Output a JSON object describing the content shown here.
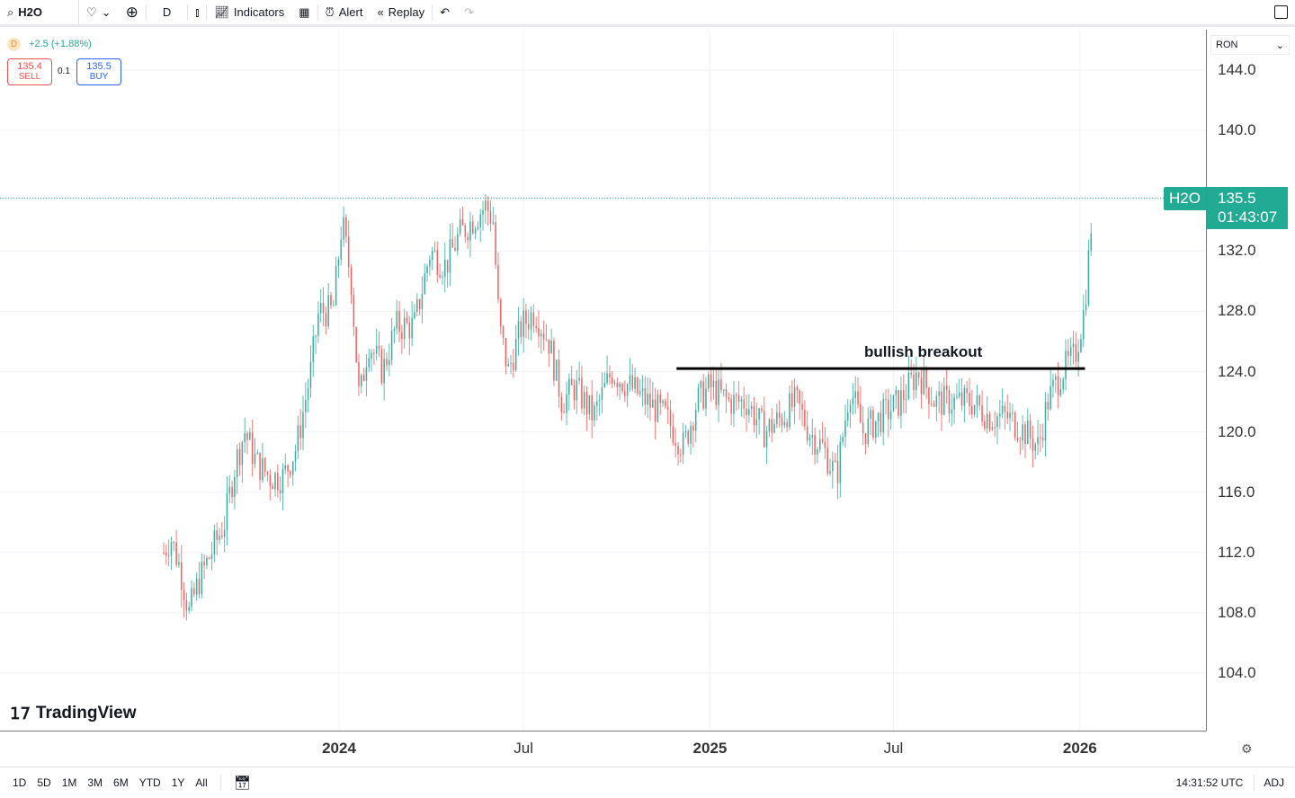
{
  "toolbar": {
    "symbol": "H2O",
    "interval": "D",
    "indicators": "Indicators",
    "alert": "Alert",
    "replay": "Replay"
  },
  "legend": {
    "interval_badge": "D",
    "change": "+2.5 (+1.88%)",
    "sell_price": "135.4",
    "sell_label": "SELL",
    "spread": "0.1",
    "buy_price": "135.5",
    "buy_label": "BUY"
  },
  "currency": "RON",
  "last_price": {
    "symbol": "H2O",
    "price": "135.5",
    "countdown": "01:43:07"
  },
  "annotation": "bullish breakout",
  "watermark": "TradingView",
  "bottom": {
    "ranges": [
      "1D",
      "5D",
      "1M",
      "3M",
      "6M",
      "YTD",
      "1Y",
      "All"
    ],
    "time": "14:31:52 UTC",
    "adj": "ADJ"
  },
  "colors": {
    "up": "#26a69a",
    "down": "#ef5350",
    "accent": "#22ab94"
  },
  "chart_data": {
    "type": "candlestick",
    "title": "H2O, D",
    "x_unit": "days since 2024-01-01",
    "ylim": [
      101,
      146
    ],
    "yticks": [
      "144.0",
      "140.0",
      "132.0",
      "128.0",
      "124.0",
      "120.0",
      "116.0",
      "112.0",
      "108.0",
      "104.0"
    ],
    "xticks": [
      {
        "label": "2024",
        "day": 0
      },
      {
        "label": "Jul",
        "day": 182
      },
      {
        "label": "2025",
        "day": 366
      },
      {
        "label": "Jul",
        "day": 547
      },
      {
        "label": "2026",
        "day": 731
      }
    ],
    "breakout_level": 124.2,
    "breakout_range_days": [
      333,
      736
    ],
    "close_path": [
      [
        -173,
        112
      ],
      [
        -166,
        113
      ],
      [
        -157,
        111
      ],
      [
        -148,
        108
      ],
      [
        -139,
        110
      ],
      [
        -126,
        112
      ],
      [
        -113,
        114
      ],
      [
        -102,
        118
      ],
      [
        -93,
        120
      ],
      [
        -82,
        118
      ],
      [
        -68,
        117
      ],
      [
        -55,
        117
      ],
      [
        -42,
        119
      ],
      [
        -28,
        124
      ],
      [
        -20,
        128
      ],
      [
        -6,
        128
      ],
      [
        3,
        134
      ],
      [
        12,
        130
      ],
      [
        20,
        122
      ],
      [
        29,
        126
      ],
      [
        43,
        124
      ],
      [
        56,
        127
      ],
      [
        74,
        127
      ],
      [
        90,
        132
      ],
      [
        105,
        131
      ],
      [
        118,
        133
      ],
      [
        131,
        134
      ],
      [
        145,
        135
      ],
      [
        152,
        134
      ],
      [
        158,
        127
      ],
      [
        167,
        124
      ],
      [
        180,
        127
      ],
      [
        193,
        128
      ],
      [
        207,
        126
      ],
      [
        220,
        122
      ],
      [
        233,
        123
      ],
      [
        251,
        121
      ],
      [
        269,
        124
      ],
      [
        287,
        123
      ],
      [
        304,
        122
      ],
      [
        322,
        121
      ],
      [
        340,
        119
      ],
      [
        353,
        122
      ],
      [
        366,
        123
      ],
      [
        384,
        122
      ],
      [
        402,
        122
      ],
      [
        420,
        120
      ],
      [
        437,
        121
      ],
      [
        451,
        122
      ],
      [
        464,
        120
      ],
      [
        477,
        119
      ],
      [
        491,
        117
      ],
      [
        504,
        123
      ],
      [
        517,
        120
      ],
      [
        535,
        121
      ],
      [
        553,
        122
      ],
      [
        571,
        124
      ],
      [
        588,
        122
      ],
      [
        606,
        122
      ],
      [
        624,
        122
      ],
      [
        642,
        121
      ],
      [
        659,
        121
      ],
      [
        677,
        120
      ],
      [
        690,
        119
      ],
      [
        699,
        122
      ],
      [
        713,
        124
      ],
      [
        726,
        125
      ],
      [
        735,
        128
      ],
      [
        739,
        131
      ],
      [
        744,
        135.5
      ]
    ]
  }
}
